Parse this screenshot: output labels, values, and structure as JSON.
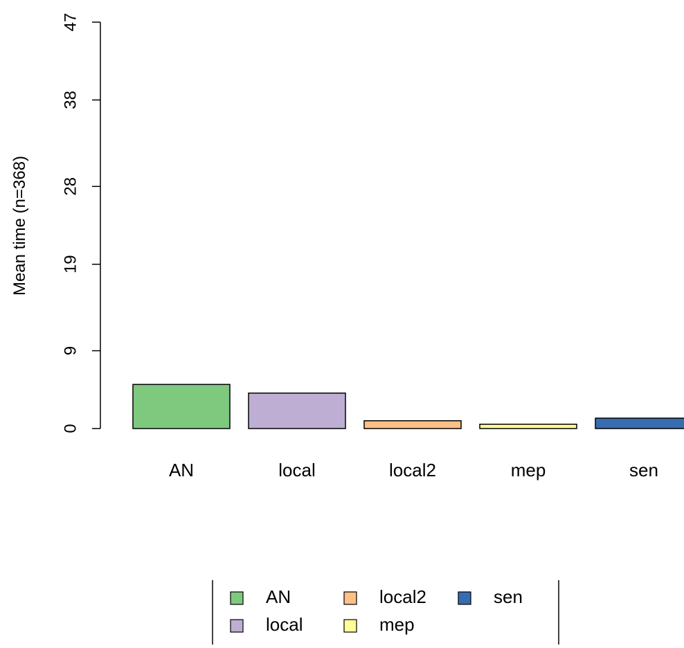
{
  "chart_data": {
    "type": "bar",
    "title": "",
    "xlabel": "",
    "ylabel": "Mean time (n=368)",
    "ylim": [
      0,
      47
    ],
    "yticks": [
      0,
      9,
      19,
      28,
      38,
      47
    ],
    "categories": [
      "AN",
      "local",
      "local2",
      "mep",
      "sen"
    ],
    "values": [
      5.1,
      4.1,
      0.9,
      0.5,
      1.2
    ],
    "colors": [
      "#7fc97f",
      "#beaed4",
      "#fdc086",
      "#ffff99",
      "#386cb0"
    ],
    "grid": false,
    "legend": {
      "placement": "bottom-center",
      "entries": [
        "AN",
        "local",
        "local2",
        "mep",
        "sen"
      ]
    }
  }
}
